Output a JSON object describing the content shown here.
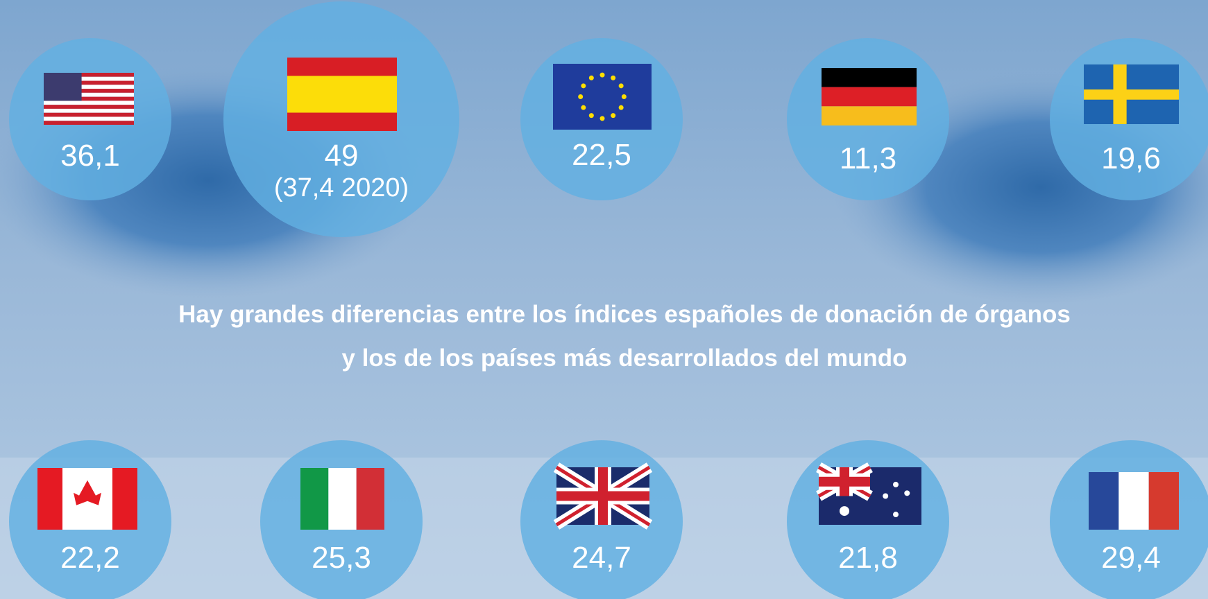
{
  "top_row": [
    {
      "value": "36,1"
    },
    {
      "value": "49",
      "note": "(37,4 2020)"
    },
    {
      "value": "22,5"
    },
    {
      "value": "11,3"
    },
    {
      "value": "19,6"
    }
  ],
  "headline": [
    "Hay grandes diferencias entre los índices españoles de donación de órganos",
    "y los de los países más desarrollados del mundo"
  ],
  "bottom_row": [
    {
      "value": "22,2"
    },
    {
      "value": "25,3"
    },
    {
      "value": "24,7"
    },
    {
      "value": "21,8"
    },
    {
      "value": "29,4"
    }
  ]
}
